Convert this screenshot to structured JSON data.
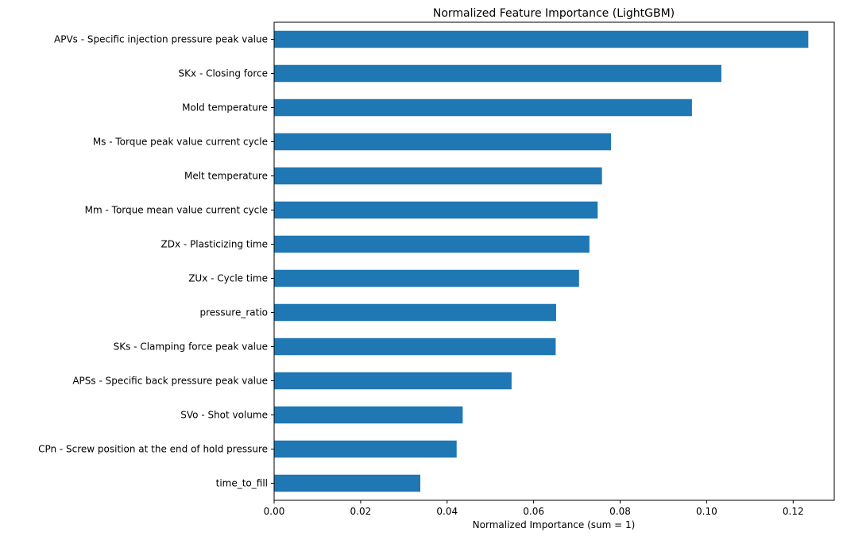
{
  "chart_data": {
    "type": "bar",
    "orientation": "horizontal",
    "title": "Normalized Feature Importance (LightGBM)",
    "xlabel": "Normalized Importance (sum = 1)",
    "ylabel": "",
    "xlim": [
      0,
      0.1295
    ],
    "xticks": [
      0.0,
      0.02,
      0.04,
      0.06,
      0.08,
      0.1,
      0.12
    ],
    "xtick_labels": [
      "0.00",
      "0.02",
      "0.04",
      "0.06",
      "0.08",
      "0.10",
      "0.12"
    ],
    "grid": false,
    "bar_color": "#1f77b4",
    "categories": [
      "APVs - Specific injection pressure peak value",
      "SKx - Closing force",
      "Mold temperature",
      "Ms - Torque peak value current cycle",
      "Melt temperature",
      "Mm - Torque mean value current cycle",
      "ZDx - Plasticizing time",
      "ZUx - Cycle time",
      "pressure_ratio",
      "SKs - Clamping force peak value",
      "APSs - Specific back pressure peak value",
      "SVo - Shot volume",
      "CPn - Screw position at the end of hold pressure",
      "time_to_fill"
    ],
    "values": [
      0.1235,
      0.1034,
      0.0966,
      0.0779,
      0.0758,
      0.0748,
      0.0729,
      0.0705,
      0.0652,
      0.0651,
      0.0549,
      0.0436,
      0.0422,
      0.0338
    ]
  }
}
